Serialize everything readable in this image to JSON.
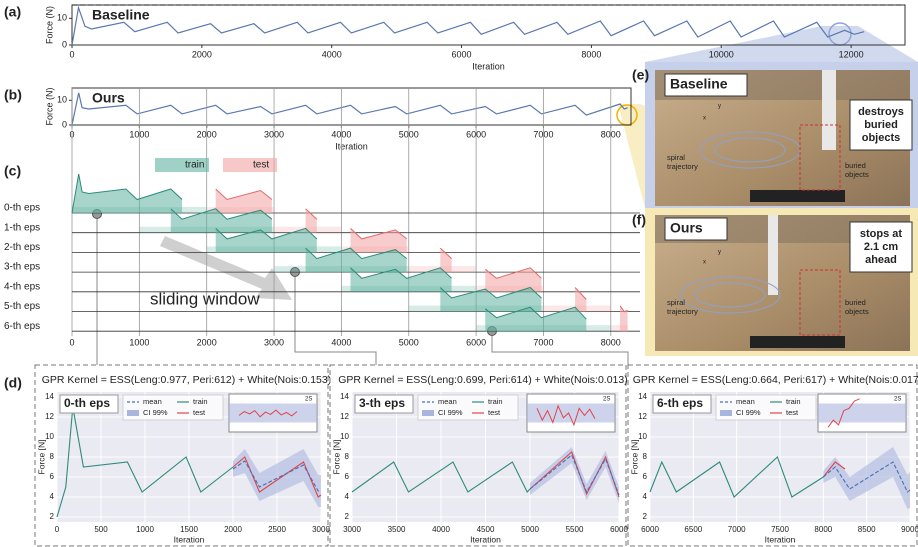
{
  "chart_data": [
    {
      "type": "line",
      "panel": "(a)",
      "title": "Baseline",
      "x_label": "Iteration",
      "y_label": "Force (N)",
      "xlim": [
        0,
        12830
      ],
      "ylim": [
        0,
        15
      ],
      "xticks": [
        0,
        2000,
        4000,
        6000,
        8000,
        10000,
        12000
      ],
      "yticks": [
        0,
        10
      ],
      "reference_line": 15,
      "color": "#5a78b0",
      "x": [
        0,
        100,
        200,
        300,
        800,
        967,
        1467,
        1634,
        2134,
        2301,
        2801,
        2968,
        3468,
        3635,
        4135,
        4302,
        4802,
        4969,
        5469,
        5636,
        6136,
        6303,
        6803,
        6970,
        7470,
        7637,
        8137,
        8304,
        8804,
        8971,
        9471,
        9638,
        10138,
        10305,
        10805,
        10972,
        11472,
        11639,
        11900,
        12050,
        12200
      ],
      "values": [
        0,
        14,
        7,
        6,
        8.5,
        5,
        8.5,
        4.5,
        8,
        4.5,
        8,
        4.5,
        8.5,
        4.5,
        8.5,
        4.5,
        8.5,
        4.5,
        8.5,
        4.5,
        8.5,
        4,
        8.5,
        4,
        8.5,
        4,
        9,
        3.5,
        9,
        3.5,
        9,
        3,
        9,
        3,
        9,
        3,
        8.5,
        3,
        5.5,
        4,
        5
      ]
    },
    {
      "type": "line",
      "panel": "(b)",
      "title": "Ours",
      "x_label": "Iteration",
      "y_label": "Force (N)",
      "xlim": [
        0,
        8300
      ],
      "ylim": [
        0,
        15
      ],
      "xticks": [
        0,
        1000,
        2000,
        3000,
        4000,
        5000,
        6000,
        7000,
        8000
      ],
      "yticks": [
        0,
        10
      ],
      "color": "#5a78b0",
      "x": [
        0,
        100,
        150,
        250,
        800,
        967,
        1467,
        1634,
        2134,
        2301,
        2801,
        2968,
        3468,
        3635,
        4135,
        4302,
        4802,
        4969,
        5469,
        5636,
        6136,
        6303,
        6803,
        6970,
        7470,
        7637,
        8137,
        8200,
        8250
      ],
      "values": [
        0,
        13,
        7,
        6.5,
        8,
        4.5,
        8,
        4.5,
        8,
        4.5,
        7.5,
        4.5,
        8,
        4.5,
        8,
        4.5,
        7.5,
        4.5,
        8,
        4.5,
        7.5,
        4.5,
        8,
        4.5,
        8,
        4,
        8.5,
        6.5,
        7
      ]
    },
    {
      "type": "window",
      "panel": "(c)",
      "annotation": "sliding window",
      "xlim": [
        0,
        8300
      ],
      "xticks": [
        0,
        1000,
        2000,
        3000,
        4000,
        5000,
        6000,
        7000,
        8000
      ],
      "legend": [
        {
          "name": "train",
          "color": "#5fb3a1"
        },
        {
          "name": "test",
          "color": "#f2a3a3"
        }
      ],
      "episodes": [
        {
          "label": "0-th eps",
          "train": [
            0,
            2000
          ],
          "test": [
            2000,
            3000
          ]
        },
        {
          "label": "1-th eps",
          "train": [
            1000,
            3000
          ],
          "test": [
            3000,
            4000
          ]
        },
        {
          "label": "2-th eps",
          "train": [
            2000,
            4000
          ],
          "test": [
            4000,
            5000
          ]
        },
        {
          "label": "3-th eps",
          "train": [
            3000,
            5000
          ],
          "test": [
            5000,
            6000
          ]
        },
        {
          "label": "4-th eps",
          "train": [
            4000,
            6000
          ],
          "test": [
            6000,
            7000
          ]
        },
        {
          "label": "5-th eps",
          "train": [
            5000,
            7000
          ],
          "test": [
            7000,
            8000
          ]
        },
        {
          "label": "6-th eps",
          "train": [
            6000,
            8000
          ],
          "test": [
            8000,
            8250
          ]
        }
      ]
    },
    {
      "type": "gpr",
      "panel": "(d)",
      "title": "GPR Kernel = ESS(Leng:0.977, Peri:612) + White(Nois:0.153)",
      "episode": "0-th eps",
      "x_label": "Iteration",
      "y_label": "Force [N]",
      "xlim": [
        0,
        3000
      ],
      "ylim": [
        1.5,
        14.5
      ],
      "xticks": [
        0,
        500,
        1000,
        1500,
        2000,
        2500,
        3000
      ],
      "yticks": [
        2,
        4,
        6,
        8,
        10,
        12,
        14
      ],
      "series": [
        {
          "name": "mean",
          "color": "#4a6fb5",
          "dash": true,
          "x": [
            2000,
            2134,
            2301,
            2801,
            2968,
            3000
          ],
          "values": [
            6.8,
            7.6,
            5,
            7.2,
            4.6,
            4.6
          ]
        },
        {
          "name": "CI 99%",
          "color": "#aab5dd",
          "x": [
            2000,
            2134,
            2301,
            2801,
            2968,
            3000
          ],
          "lower": [
            6,
            6.4,
            3.6,
            5.6,
            3,
            3
          ],
          "upper": [
            7.6,
            8.8,
            6.4,
            8.8,
            6.2,
            6.2
          ]
        },
        {
          "name": "train",
          "color": "#2e8b7a",
          "x": [
            0,
            100,
            180,
            300,
            800,
            967,
            1467,
            1634,
            2000
          ],
          "values": [
            2,
            5,
            13,
            7,
            7.5,
            4.5,
            8,
            4.5,
            7
          ]
        },
        {
          "name": "test",
          "color": "#e0454a",
          "x": [
            2000,
            2134,
            2301,
            2801,
            2968,
            3000
          ],
          "values": [
            7,
            8,
            4.5,
            7.5,
            4,
            4.2
          ]
        }
      ],
      "inset": {
        "label": "2S",
        "ylim": [
          -4,
          4
        ],
        "band": [
          -2,
          2
        ],
        "values": [
          -0.5,
          0.3,
          -0.2,
          0.5,
          -0.8,
          0.2,
          -0.3,
          0.6,
          -0.4,
          0.1,
          -0.6,
          0.3
        ]
      }
    },
    {
      "type": "gpr",
      "title": "GPR Kernel = ESS(Leng:0.699, Peri:614) + White(Nois:0.013)",
      "episode": "3-th eps",
      "x_label": "Iteration",
      "y_label": "Force [N]",
      "xlim": [
        3000,
        6000
      ],
      "ylim": [
        1.5,
        14.5
      ],
      "xticks": [
        3000,
        3500,
        4000,
        4500,
        5000,
        5500,
        6000
      ],
      "yticks": [
        2,
        4,
        6,
        8,
        10,
        12,
        14
      ],
      "series": [
        {
          "name": "mean",
          "color": "#4a6fb5",
          "dash": true,
          "x": [
            5000,
            5469,
            5636,
            5850,
            6000
          ],
          "values": [
            4.8,
            8.2,
            4.5,
            7.8,
            4.2
          ]
        },
        {
          "name": "CI 99%",
          "color": "#aab5dd",
          "x": [
            5000,
            5469,
            5636,
            5850,
            6000
          ],
          "lower": [
            4.2,
            7.4,
            3.7,
            7,
            3.4
          ],
          "upper": [
            5.4,
            9,
            5.3,
            8.6,
            5
          ]
        },
        {
          "name": "train",
          "color": "#2e8b7a",
          "x": [
            3000,
            3468,
            3635,
            4135,
            4302,
            4802,
            4969,
            5000
          ],
          "values": [
            4.5,
            7.5,
            4.5,
            7.5,
            4.5,
            7.5,
            4.5,
            4.8
          ]
        },
        {
          "name": "test",
          "color": "#e0454a",
          "x": [
            5000,
            5469,
            5636,
            5850,
            6000
          ],
          "values": [
            4.8,
            8.5,
            4.3,
            8,
            4
          ]
        }
      ],
      "inset": {
        "label": "2S",
        "ylim": [
          -4,
          4
        ],
        "band": [
          -2,
          2
        ],
        "values": [
          1,
          -1.5,
          0.5,
          -2,
          1.5,
          -1,
          0,
          -2.5,
          1,
          -0.5,
          0.8,
          -1.2
        ]
      }
    },
    {
      "type": "gpr",
      "title": "GPR Kernel = ESS(Leng:0.664, Peri:617) + White(Nois:0.017)",
      "episode": "6-th eps",
      "x_label": "Iteration",
      "y_label": "Force [N]",
      "xlim": [
        6000,
        9000
      ],
      "ylim": [
        1.5,
        14.5
      ],
      "xticks": [
        6000,
        6500,
        7000,
        7500,
        8000,
        8500,
        9000
      ],
      "yticks": [
        2,
        4,
        6,
        8,
        10,
        12,
        14
      ],
      "series": [
        {
          "name": "mean",
          "color": "#4a6fb5",
          "dash": true,
          "x": [
            8000,
            8137,
            8304,
            8804,
            8971,
            9000
          ],
          "values": [
            6,
            7,
            4.8,
            7.5,
            4.5,
            4.7
          ]
        },
        {
          "name": "CI 99%",
          "color": "#aab5dd",
          "x": [
            8000,
            8137,
            8304,
            8804,
            8971,
            9000
          ],
          "lower": [
            5.4,
            6,
            3.6,
            6,
            2.8,
            2.9
          ],
          "upper": [
            6.6,
            8,
            6,
            9,
            6.2,
            6.5
          ]
        },
        {
          "name": "train",
          "color": "#2e8b7a",
          "x": [
            6000,
            6136,
            6303,
            6803,
            6970,
            7470,
            7637,
            8000
          ],
          "values": [
            4.5,
            7.5,
            4.5,
            7.5,
            4,
            8,
            4,
            6
          ]
        },
        {
          "name": "test",
          "color": "#e0454a",
          "x": [
            8000,
            8137,
            8250
          ],
          "values": [
            6,
            7.5,
            6.8
          ]
        }
      ],
      "inset": {
        "label": "2S",
        "ylim": [
          -4,
          4
        ],
        "band": [
          -2,
          2
        ],
        "values": [
          -3,
          -1.5,
          -2.5,
          0.5,
          1,
          2.5,
          3
        ]
      }
    }
  ],
  "photos": [
    {
      "panel": "(e)",
      "title": "Baseline",
      "callout": [
        "destroys",
        "buried",
        "objects"
      ],
      "trajectory": [
        "spiral",
        "trajectory"
      ],
      "objects": [
        "buried",
        "objects"
      ],
      "axes": [
        "y",
        "x"
      ]
    },
    {
      "panel": "(f)",
      "title": "Ours",
      "callout": [
        "stops at",
        "2.1 cm",
        "ahead"
      ],
      "trajectory": [
        "spiral",
        "trajectory"
      ],
      "objects": [
        "buried",
        "objects"
      ],
      "axes": [
        "y",
        "x"
      ]
    }
  ]
}
